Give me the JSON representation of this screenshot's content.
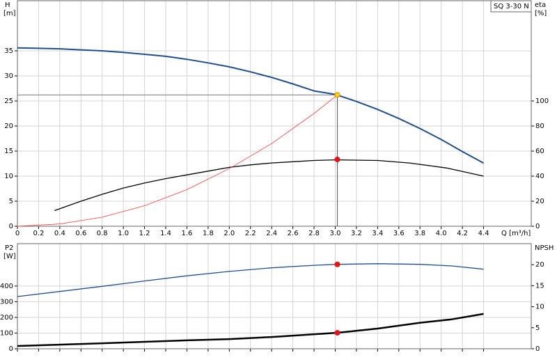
{
  "chart_data": [
    {
      "type": "line",
      "annotation": "SQ 3-30 N",
      "ylabel": "H",
      "yunit": "[m]",
      "y2label": "eta",
      "y2unit": "[%]",
      "xlabel": "Q [m³/h]",
      "xlim": [
        0,
        4.85
      ],
      "xticks": [
        0,
        0.2,
        0.4,
        0.6,
        0.8,
        {
          "value": 1,
          "label": "1.0"
        },
        1.2,
        1.4,
        1.6,
        1.8,
        {
          "value": 2,
          "label": "2.0"
        },
        2.2,
        2.4,
        2.6,
        2.8,
        {
          "value": 3,
          "label": "3.0"
        },
        3.2,
        3.4,
        3.6,
        3.8,
        {
          "value": 4,
          "label": "4.0"
        },
        4.2,
        4.4
      ],
      "show_xtick_labels": true,
      "ylim": [
        0,
        45
      ],
      "yticks": [
        0,
        5,
        10,
        15,
        20,
        25,
        30,
        35
      ],
      "y2lim": [
        0,
        180
      ],
      "y2ticks": [
        0,
        20,
        40,
        60,
        80,
        100
      ],
      "grid": true,
      "series": [
        {
          "color": "#1f4e8c",
          "width": 2,
          "axis": "y",
          "x": [
            0,
            0.2,
            0.4,
            0.6,
            0.8,
            1.0,
            1.2,
            1.4,
            1.6,
            1.8,
            2.0,
            2.2,
            2.4,
            2.6,
            2.8,
            3.0,
            3.2,
            3.4,
            3.6,
            3.8,
            4.0,
            4.2,
            4.4
          ],
          "values": [
            35.6,
            35.5,
            35.4,
            35.2,
            35.0,
            34.7,
            34.3,
            33.9,
            33.3,
            32.6,
            31.8,
            30.8,
            29.7,
            28.4,
            27.0,
            26.3,
            24.9,
            23.3,
            21.5,
            19.5,
            17.3,
            14.9,
            12.6
          ]
        },
        {
          "color": "#000000",
          "width": 1.3,
          "axis": "y2",
          "x": [
            0.35,
            0.6,
            0.8,
            1.0,
            1.2,
            1.4,
            1.6,
            1.8,
            2.0,
            2.2,
            2.4,
            2.6,
            2.8,
            3.0,
            3.4,
            3.7,
            4.05,
            4.4
          ],
          "values": [
            12.5,
            20,
            25.5,
            30.5,
            34.5,
            38,
            41,
            44,
            47,
            49,
            50.5,
            51.5,
            52.5,
            53,
            52.5,
            50.5,
            46.5,
            40
          ]
        },
        {
          "color": "#ff3b3b",
          "width": 0.8,
          "axis": "y",
          "x": [
            0,
            0.4,
            0.8,
            1.2,
            1.6,
            2.0,
            2.4,
            2.8,
            3.02
          ],
          "values": [
            0,
            0.46,
            1.8,
            4.1,
            7.3,
            11.5,
            16.5,
            22.5,
            26.2
          ]
        }
      ],
      "points": [
        {
          "x": 3.02,
          "y": 26.2,
          "axis": "y",
          "color": "#ffd700",
          "stroke": "#e08000",
          "guides": true
        },
        {
          "x": 3.02,
          "y": 53.3,
          "axis": "y2",
          "color": "#ee1111",
          "stroke": "#ee1111",
          "guides": false
        }
      ]
    },
    {
      "type": "line",
      "ylabel": "P2",
      "yunit": "[W]",
      "y2label": "NPSH",
      "xlim": [
        0,
        4.85
      ],
      "xticks": [
        0,
        0.2,
        0.4,
        0.6,
        0.8,
        1.0,
        1.2,
        1.4,
        1.6,
        1.8,
        2.0,
        2.2,
        2.4,
        2.6,
        2.8,
        3.0,
        3.2,
        3.4,
        3.6,
        3.8,
        4.0,
        4.2,
        4.4
      ],
      "show_xtick_labels": false,
      "ylim": [
        0,
        670
      ],
      "yticks": [
        0,
        100,
        200,
        300,
        400
      ],
      "y2lim": [
        0,
        25
      ],
      "y2ticks": [
        0,
        5,
        10,
        15,
        20
      ],
      "grid": true,
      "series": [
        {
          "color": "#1f4e8c",
          "width": 1.3,
          "axis": "y",
          "x": [
            0,
            0.4,
            0.8,
            1.2,
            1.6,
            2.0,
            2.4,
            2.8,
            3.02,
            3.4,
            3.8,
            4.1,
            4.4
          ],
          "values": [
            333,
            365,
            398,
            432,
            465,
            493,
            516,
            532,
            538,
            542,
            538,
            528,
            507
          ]
        },
        {
          "color": "#000000",
          "width": 2.5,
          "axis": "y2",
          "x": [
            0,
            0.8,
            1.6,
            2.0,
            2.4,
            3.02,
            3.4,
            3.8,
            4.1,
            4.4
          ],
          "values": [
            0.67,
            1.3,
            2,
            2.3,
            2.8,
            3.8,
            4.8,
            6.2,
            7,
            8.3
          ]
        }
      ],
      "points": [
        {
          "x": 3.02,
          "y": 538,
          "axis": "y",
          "color": "#ee1111",
          "stroke": "#ee1111",
          "guides": false
        },
        {
          "x": 3.02,
          "y": 3.8,
          "axis": "y2",
          "color": "#ee1111",
          "stroke": "#ee1111",
          "guides": false
        }
      ]
    }
  ]
}
